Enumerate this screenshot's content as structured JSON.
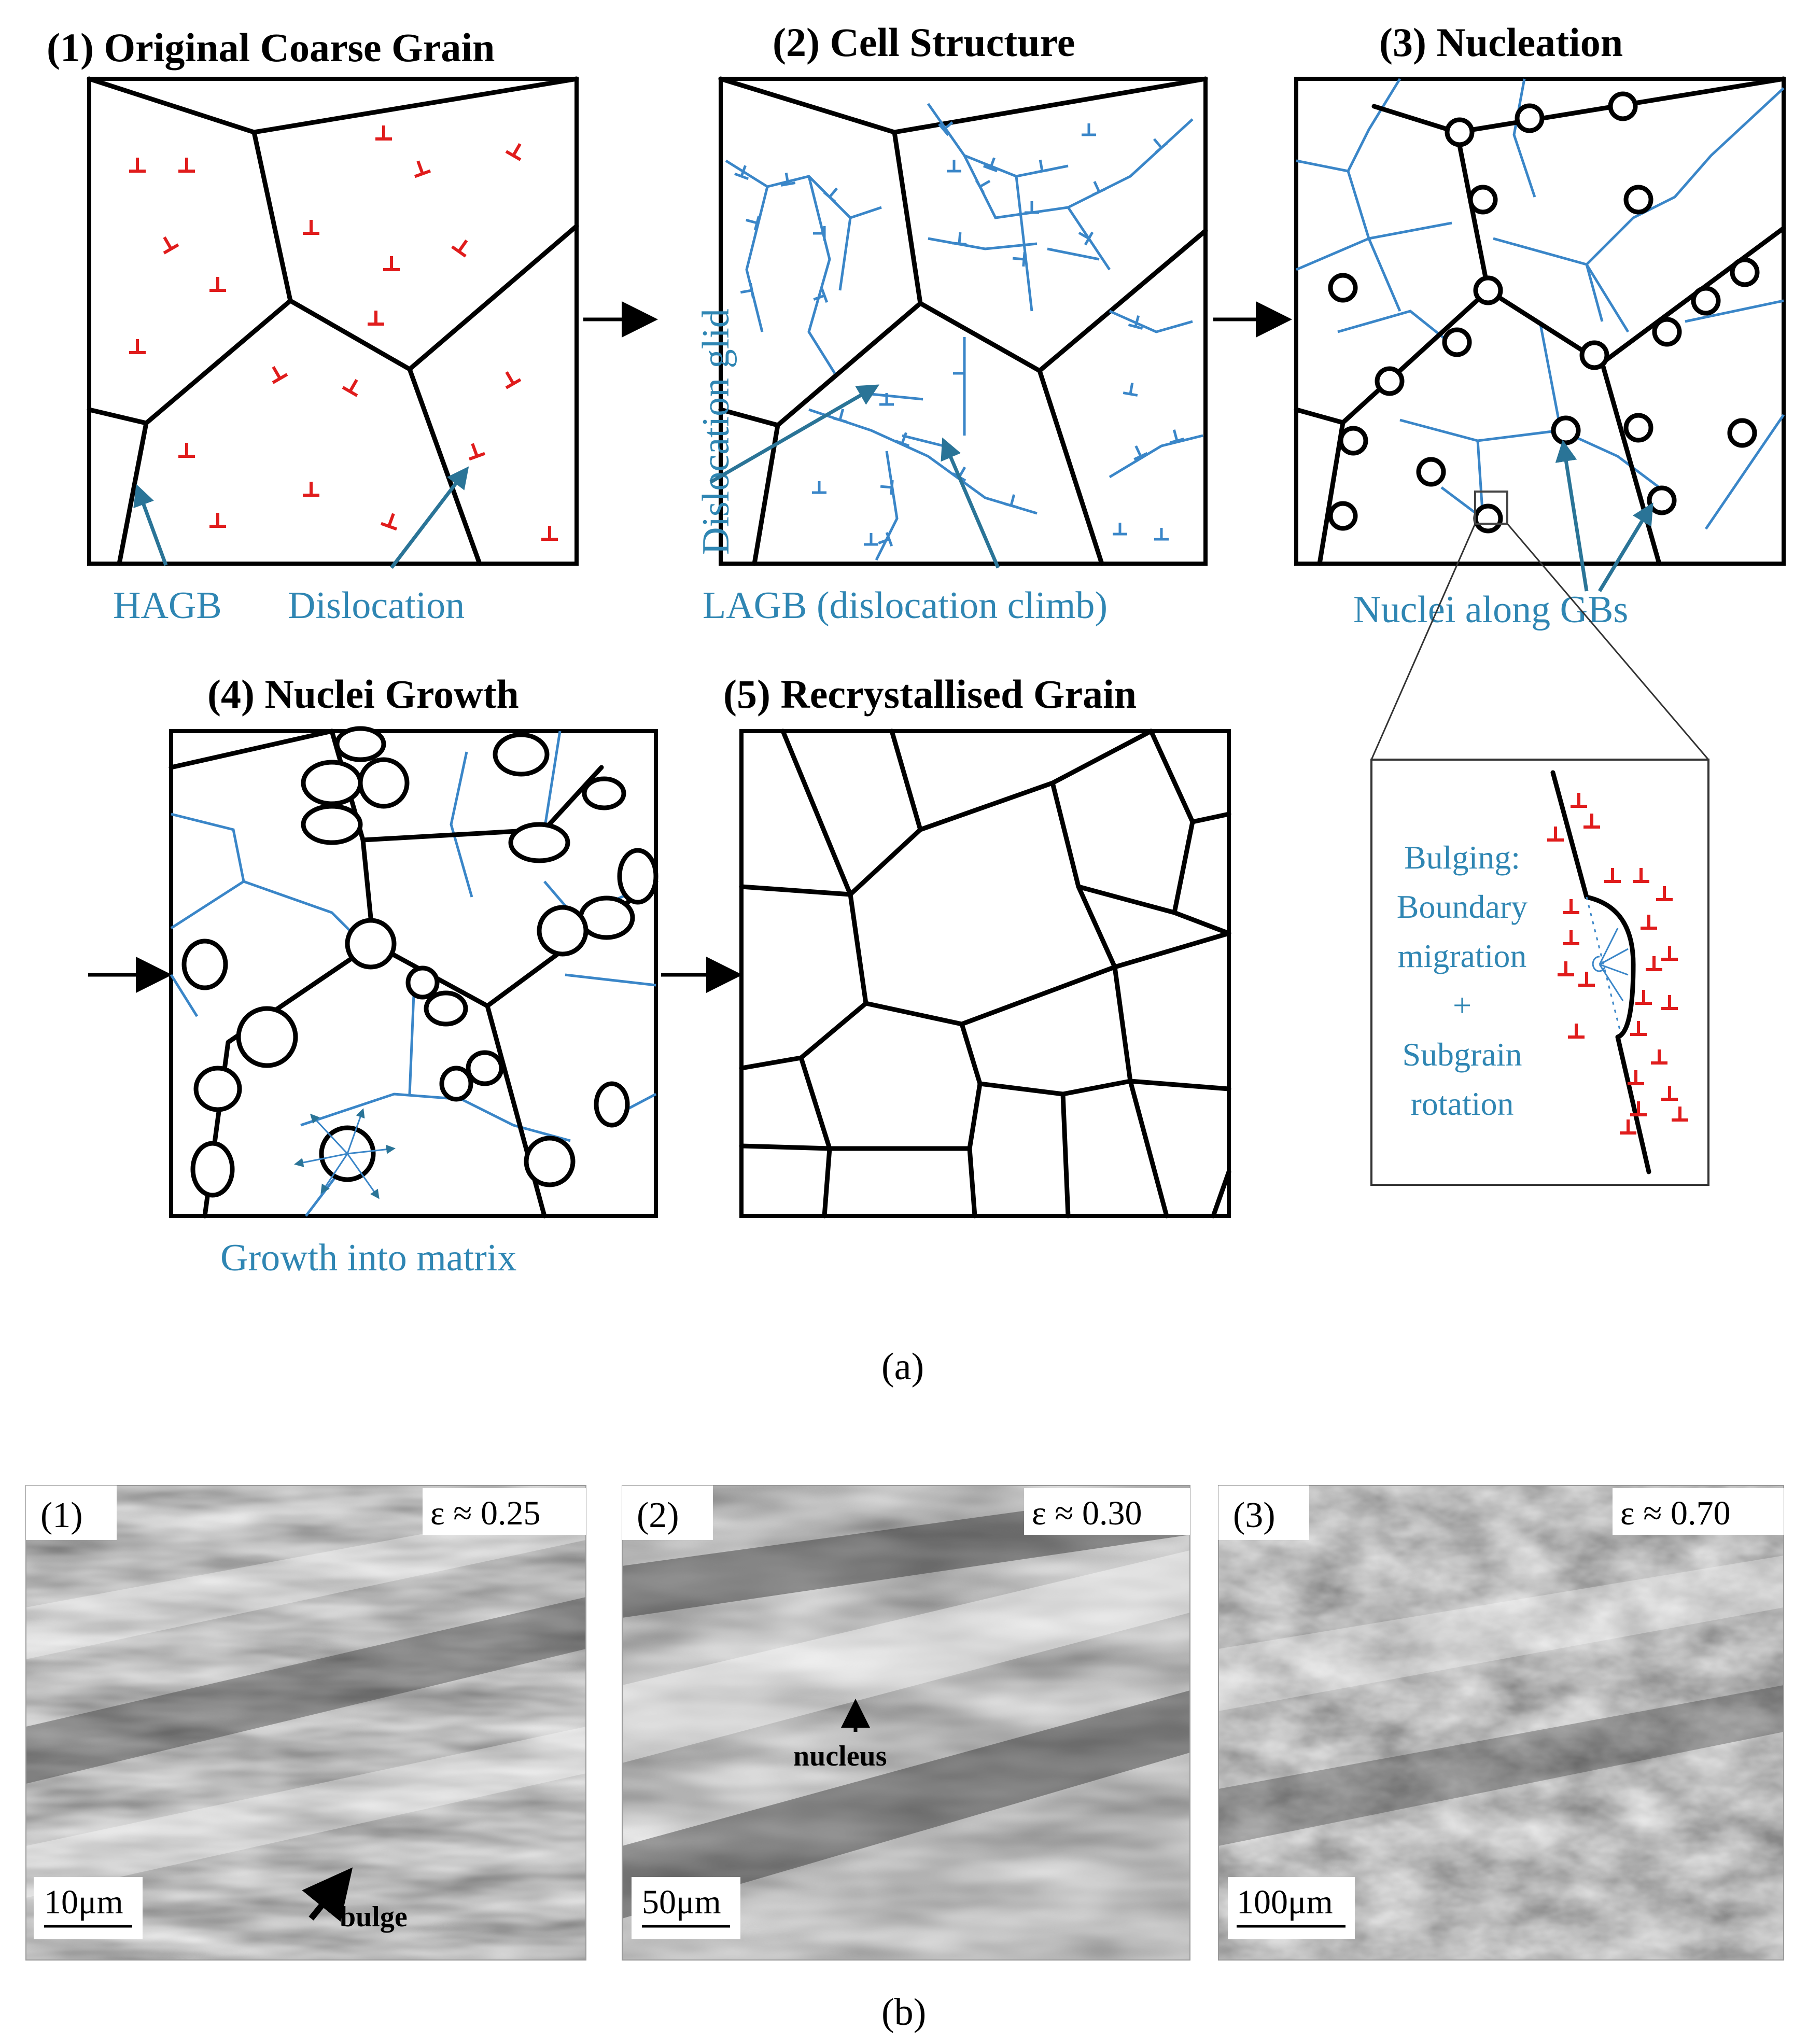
{
  "panel_a": {
    "titles": {
      "p1": "(1) Original Coarse Grain",
      "p2": "(2) Cell Structure",
      "p3": "(3) Nucleation",
      "p4": "(4) Nuclei Growth",
      "p5": "(5) Recrystallised Grain"
    },
    "labels": {
      "hagb": "HAGB",
      "dislocation": "Dislocation",
      "dislocation_glide": "Dislocation glid",
      "lagb": "LAGB (dislocation climb)",
      "nuclei": "Nuclei along GBs",
      "growth": "Growth into matrix",
      "inset_lines": [
        "Bulging:",
        "Boundary",
        "migration",
        "+",
        "Subgrain",
        "rotation"
      ]
    },
    "caption": "(a)"
  },
  "panel_b": {
    "images": [
      {
        "label": "(1)",
        "strain": "ε ≈ 0.25",
        "scale": "10μm",
        "annotation": "bulge"
      },
      {
        "label": "(2)",
        "strain": "ε ≈ 0.30",
        "scale": "50μm",
        "annotation": "nucleus"
      },
      {
        "label": "(3)",
        "strain": "ε ≈ 0.70",
        "scale": "100μm",
        "annotation": ""
      }
    ],
    "caption": "(b)"
  },
  "colors": {
    "hagb": "#000000",
    "lagb": "#3a86c8",
    "dislocation": "#e01c1c",
    "annotation_teal": "#2f86b3"
  }
}
